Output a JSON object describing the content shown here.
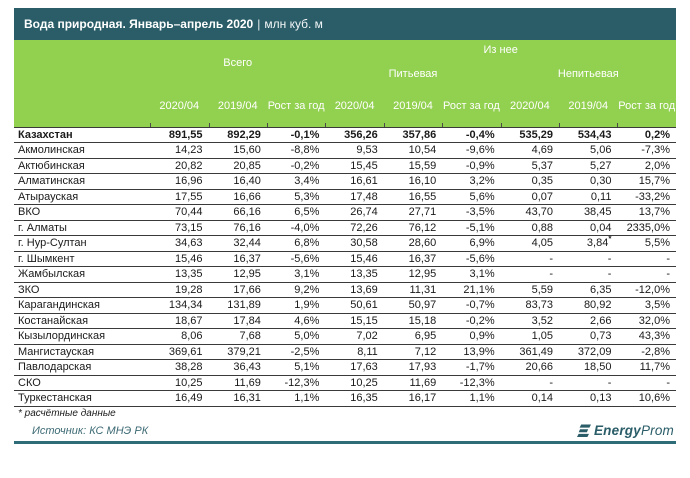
{
  "title": {
    "main": "Вода природная. Январь–апрель 2020",
    "separator": "|",
    "unit": "млн куб. м"
  },
  "header": {
    "iz_nee": "Из нее",
    "groups": [
      {
        "label": "Всего"
      },
      {
        "label": "Питьевая"
      },
      {
        "label": "Непитьевая"
      }
    ],
    "columns": [
      "2020/04",
      "2019/04",
      "Рост за год"
    ]
  },
  "chart_data": {
    "type": "table",
    "title": "Вода природная. Январь–апрель 2020, млн куб. м",
    "column_groups": [
      "Всего",
      "Питьевая",
      "Непитьевая"
    ],
    "columns_per_group": [
      "2020/04",
      "2019/04",
      "Рост за год"
    ]
  },
  "rows": [
    {
      "region": "Казахстан",
      "bold": true,
      "values": [
        "891,55",
        "892,29",
        "-0,1%",
        "356,26",
        "357,86",
        "-0,4%",
        "535,29",
        "534,43",
        "0,2%"
      ]
    },
    {
      "region": "Акмолинская",
      "bold": false,
      "values": [
        "14,23",
        "15,60",
        "-8,8%",
        "9,53",
        "10,54",
        "-9,6%",
        "4,69",
        "5,06",
        "-7,3%"
      ]
    },
    {
      "region": "Актюбинская",
      "bold": false,
      "values": [
        "20,82",
        "20,85",
        "-0,2%",
        "15,45",
        "15,59",
        "-0,9%",
        "5,37",
        "5,27",
        "2,0%"
      ]
    },
    {
      "region": "Алматинская",
      "bold": false,
      "values": [
        "16,96",
        "16,40",
        "3,4%",
        "16,61",
        "16,10",
        "3,2%",
        "0,35",
        "0,30",
        "15,7%"
      ]
    },
    {
      "region": "Атырауская",
      "bold": false,
      "values": [
        "17,55",
        "16,66",
        "5,3%",
        "17,48",
        "16,55",
        "5,6%",
        "0,07",
        "0,11",
        "-33,2%"
      ]
    },
    {
      "region": "ВКО",
      "bold": false,
      "values": [
        "70,44",
        "66,16",
        "6,5%",
        "26,74",
        "27,71",
        "-3,5%",
        "43,70",
        "38,45",
        "13,7%"
      ]
    },
    {
      "region": "г. Алматы",
      "bold": false,
      "values": [
        "73,15",
        "76,16",
        "-4,0%",
        "72,26",
        "76,12",
        "-5,1%",
        "0,88",
        "0,04",
        "2335,0%"
      ]
    },
    {
      "region": "г. Нур-Султан",
      "bold": false,
      "values": [
        "34,63",
        "32,44",
        "6,8%",
        "30,58",
        "28,60",
        "6,9%",
        "4,05",
        "3,84*",
        "5,5%"
      ]
    },
    {
      "region": "г. Шымкент",
      "bold": false,
      "values": [
        "15,46",
        "16,37",
        "-5,6%",
        "15,46",
        "16,37",
        "-5,6%",
        "-",
        "-",
        "-"
      ]
    },
    {
      "region": "Жамбылская",
      "bold": false,
      "values": [
        "13,35",
        "12,95",
        "3,1%",
        "13,35",
        "12,95",
        "3,1%",
        "-",
        "-",
        "-"
      ]
    },
    {
      "region": "ЗКО",
      "bold": false,
      "values": [
        "19,28",
        "17,66",
        "9,2%",
        "13,69",
        "11,31",
        "21,1%",
        "5,59",
        "6,35",
        "-12,0%"
      ]
    },
    {
      "region": "Карагандинская",
      "bold": false,
      "values": [
        "134,34",
        "131,89",
        "1,9%",
        "50,61",
        "50,97",
        "-0,7%",
        "83,73",
        "80,92",
        "3,5%"
      ]
    },
    {
      "region": "Костанайская",
      "bold": false,
      "values": [
        "18,67",
        "17,84",
        "4,6%",
        "15,15",
        "15,18",
        "-0,2%",
        "3,52",
        "2,66",
        "32,0%"
      ]
    },
    {
      "region": "Кызылординская",
      "bold": false,
      "values": [
        "8,06",
        "7,68",
        "5,0%",
        "7,02",
        "6,95",
        "0,9%",
        "1,05",
        "0,73",
        "43,3%"
      ]
    },
    {
      "region": "Мангистауская",
      "bold": false,
      "values": [
        "369,61",
        "379,21",
        "-2,5%",
        "8,11",
        "7,12",
        "13,9%",
        "361,49",
        "372,09",
        "-2,8%"
      ]
    },
    {
      "region": "Павлодарская",
      "bold": false,
      "values": [
        "38,28",
        "36,43",
        "5,1%",
        "17,63",
        "17,93",
        "-1,7%",
        "20,66",
        "18,50",
        "11,7%"
      ]
    },
    {
      "region": "СКО",
      "bold": false,
      "values": [
        "10,25",
        "11,69",
        "-12,3%",
        "10,25",
        "11,69",
        "-12,3%",
        "-",
        "-",
        "-"
      ]
    },
    {
      "region": "Туркестанская",
      "bold": false,
      "values": [
        "16,49",
        "16,31",
        "1,1%",
        "16,35",
        "16,17",
        "1,1%",
        "0,14",
        "0,13",
        "10,6%"
      ]
    }
  ],
  "footnote": "* расчётные данные",
  "source": "Источник: КС МНЭ РК",
  "logo": {
    "bold": "Energy",
    "regular": "Prom"
  },
  "colors": {
    "title_bar": "#2a5d68",
    "header_green": "#92d050",
    "header_text": "#ffffff",
    "logo_teal": "#2a5d68",
    "bottom_rule": "#2e6d78"
  }
}
